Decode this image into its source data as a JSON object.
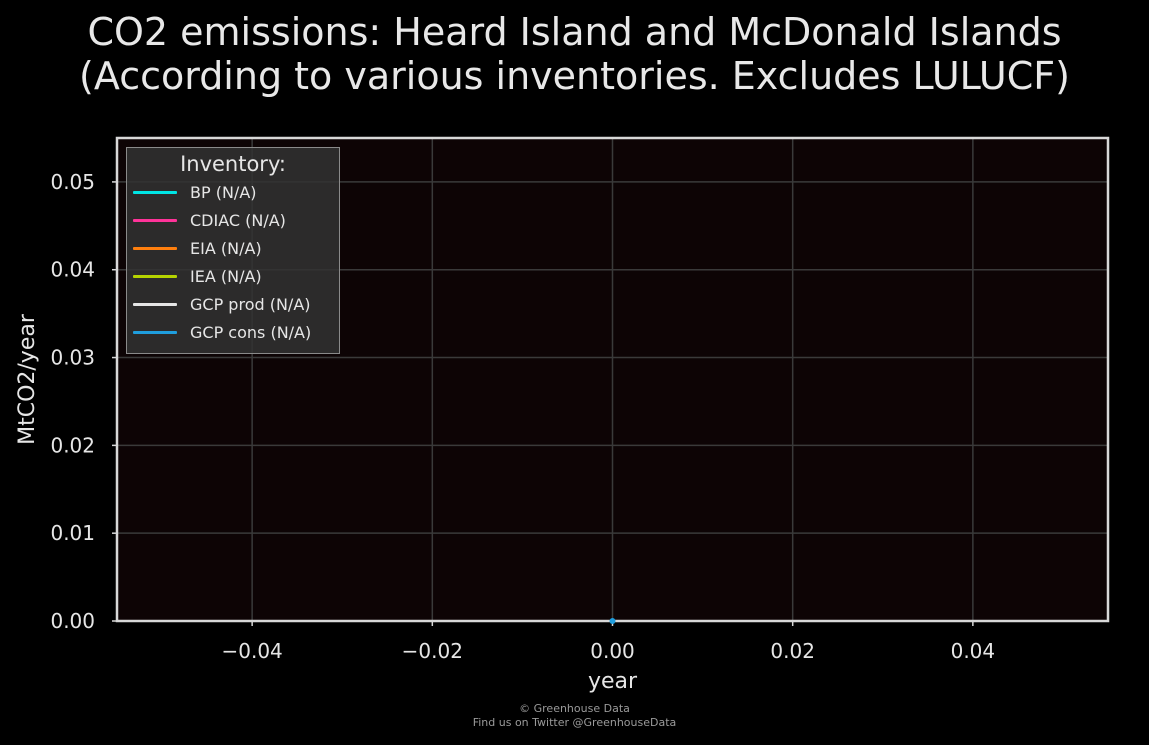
{
  "chart_data": {
    "type": "line",
    "title": "CO2 emissions: Heard Island and McDonald Islands",
    "subtitle": "(According to various inventories. Excludes LULUCF)",
    "xlabel": "year",
    "ylabel": "MtCO2/year",
    "xlim": [
      -0.055,
      0.055
    ],
    "ylim": [
      0,
      0.055
    ],
    "xticks": [
      -0.04,
      -0.02,
      0.0,
      0.02,
      0.04
    ],
    "xtick_labels": [
      "−0.04",
      "−0.02",
      "0.00",
      "0.02",
      "0.04"
    ],
    "yticks": [
      0.0,
      0.01,
      0.02,
      0.03,
      0.04,
      0.05
    ],
    "ytick_labels": [
      "0.00",
      "0.01",
      "0.02",
      "0.03",
      "0.04",
      "0.05"
    ],
    "grid": true,
    "legend_title": "Inventory:",
    "legend_position": "top-left",
    "series": [
      {
        "name": "BP (N/A)",
        "color": "#00e5e5",
        "x": [],
        "y": []
      },
      {
        "name": "CDIAC (N/A)",
        "color": "#ff3399",
        "x": [],
        "y": []
      },
      {
        "name": "EIA (N/A)",
        "color": "#ff7f0e",
        "x": [],
        "y": []
      },
      {
        "name": "IEA (N/A)",
        "color": "#b5d300",
        "x": [],
        "y": []
      },
      {
        "name": "GCP prod (N/A)",
        "color": "#e6e6e6",
        "x": [],
        "y": []
      },
      {
        "name": "GCP cons (N/A)",
        "color": "#1f9ede",
        "x": [
          0
        ],
        "y": [
          0
        ]
      }
    ]
  },
  "footer": {
    "line1": "© Greenhouse Data",
    "line2": "Find us on Twitter @GreenhouseData"
  },
  "colors": {
    "background": "#000000",
    "plot_background": "#0d0405",
    "grid": "#3a3a3a",
    "frame": "#d8d8d8"
  }
}
